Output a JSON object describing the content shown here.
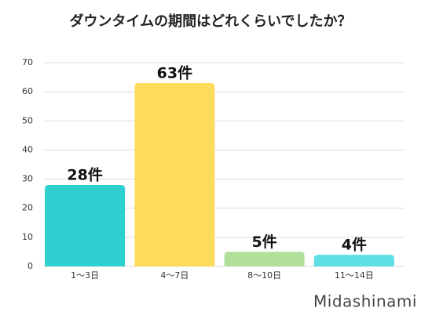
{
  "chart_data": {
    "type": "bar",
    "title": "ダウンタイムの期間はどれくらいでしたか？",
    "categories": [
      "1〜3日",
      "4〜7日",
      "8〜10日",
      "11〜14日"
    ],
    "values": [
      28,
      63,
      5,
      4
    ],
    "value_labels": [
      "28件",
      "63件",
      "5件",
      "4件"
    ],
    "colors": [
      "#2ecfcf",
      "#fddc5c",
      "#b1e09a",
      "#5ee0e6"
    ],
    "ylim": [
      0,
      70
    ],
    "yticks": [
      0,
      10,
      20,
      30,
      40,
      50,
      60,
      70
    ],
    "grid": true,
    "watermark": "Midashinami"
  }
}
